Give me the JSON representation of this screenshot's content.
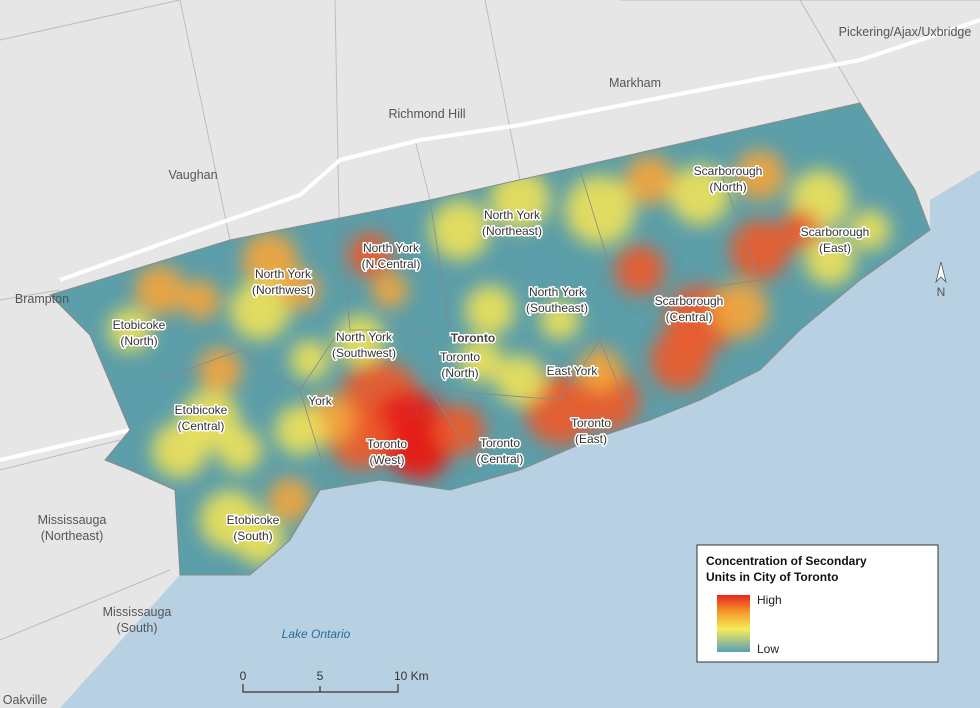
{
  "map": {
    "context_labels": [
      {
        "lines": [
          "Pickering/Ajax/Uxbridge"
        ]
      },
      {
        "lines": [
          "Markham"
        ]
      },
      {
        "lines": [
          "Richmond Hill"
        ]
      },
      {
        "lines": [
          "Vaughan"
        ]
      },
      {
        "lines": [
          "Brampton"
        ]
      },
      {
        "lines": [
          "Mississauga",
          "(Northeast)"
        ]
      },
      {
        "lines": [
          "Mississauga",
          "(South)"
        ]
      },
      {
        "lines": [
          "Oakville"
        ]
      }
    ],
    "city_label": "Toronto",
    "water_label": "Lake Ontario",
    "district_labels": [
      {
        "lines": [
          "Scarborough",
          "(North)"
        ]
      },
      {
        "lines": [
          "Scarborough",
          "(East)"
        ]
      },
      {
        "lines": [
          "North York",
          "(Northeast)"
        ]
      },
      {
        "lines": [
          "North York",
          "(N.Central)"
        ]
      },
      {
        "lines": [
          "North York",
          "(Northwest)"
        ]
      },
      {
        "lines": [
          "North York",
          "(Southeast)"
        ]
      },
      {
        "lines": [
          "Scarborough",
          "(Central)"
        ]
      },
      {
        "lines": [
          "Etobicoke",
          "(North)"
        ]
      },
      {
        "lines": [
          "North York",
          "(Southwest)"
        ]
      },
      {
        "lines": [
          "Toronto",
          "(North)"
        ]
      },
      {
        "lines": [
          "East York"
        ]
      },
      {
        "lines": [
          "York"
        ]
      },
      {
        "lines": [
          "Etobicoke",
          "(Central)"
        ]
      },
      {
        "lines": [
          "Toronto",
          "(East)"
        ]
      },
      {
        "lines": [
          "Toronto",
          "(West)"
        ]
      },
      {
        "lines": [
          "Toronto",
          "(Central)"
        ]
      },
      {
        "lines": [
          "Etobicoke",
          "(South)"
        ]
      }
    ],
    "legend": {
      "title_lines": [
        "Concentration of Secondary",
        "Units in City of Toronto"
      ],
      "high": "High",
      "low": "Low"
    },
    "scale_bar": {
      "ticks": [
        "0",
        "5",
        "10 Km"
      ]
    },
    "north_arrow": "N"
  }
}
